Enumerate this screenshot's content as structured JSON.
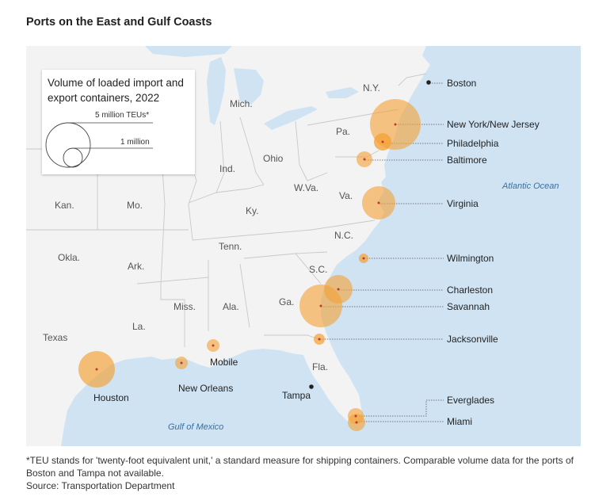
{
  "title": "Ports on the East and Gulf Coasts",
  "legend": {
    "title": "Volume of loaded import and export containers, 2022",
    "large_label": "5 million TEUs*",
    "small_label": "1 million"
  },
  "states": [
    "Mich.",
    "N.Y.",
    "Pa.",
    "Ohio",
    "Ind.",
    "W.Va.",
    "Va.",
    "Ky.",
    "Kan.",
    "Mo.",
    "Tenn.",
    "N.C.",
    "Okla.",
    "Ark.",
    "S.C.",
    "Miss.",
    "Ala.",
    "Ga.",
    "La.",
    "Texas",
    "Fla."
  ],
  "water": {
    "atlantic": "Atlantic Ocean",
    "gulf": "Gulf of Mexico"
  },
  "ports": [
    {
      "name": "Boston",
      "volume_note": "not available"
    },
    {
      "name": "New York/New Jersey"
    },
    {
      "name": "Philadelphia"
    },
    {
      "name": "Baltimore"
    },
    {
      "name": "Virginia"
    },
    {
      "name": "Wilmington"
    },
    {
      "name": "Charleston"
    },
    {
      "name": "Savannah"
    },
    {
      "name": "Jacksonville"
    },
    {
      "name": "Everglades"
    },
    {
      "name": "Miami"
    },
    {
      "name": "Houston"
    },
    {
      "name": "New Orleans"
    },
    {
      "name": "Mobile"
    },
    {
      "name": "Tampa",
      "volume_note": "not available"
    }
  ],
  "footnote": "*TEU stands for 'twenty-foot equivalent unit,' a standard measure for shipping containers. Comparable volume data for the ports of Boston and Tampa not available.",
  "source": "Source: Transportation Department",
  "colors": {
    "land": "#f3f3f3",
    "water": "#cfe3f3",
    "bubble": "#f5a033",
    "dot": "#c0392b"
  }
}
